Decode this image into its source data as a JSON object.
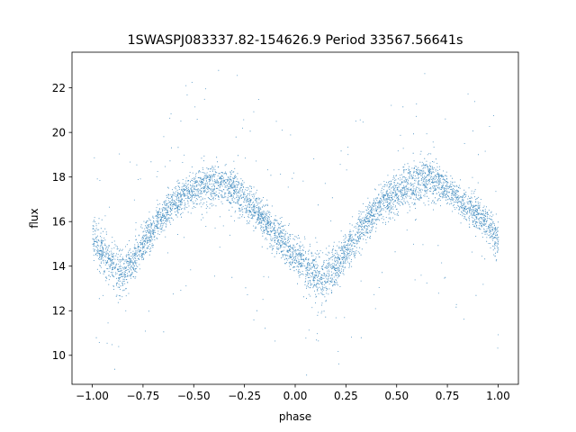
{
  "chart_data": {
    "type": "scatter",
    "title": "1SWASPJ083337.82-154626.9 Period 33567.56641s",
    "xlabel": "phase",
    "ylabel": "flux",
    "xlim": [
      -1.1,
      1.1
    ],
    "ylim": [
      8.7,
      23.6
    ],
    "xticks": [
      -1.0,
      -0.75,
      -0.5,
      -0.25,
      0.0,
      0.25,
      0.5,
      0.75,
      1.0
    ],
    "xtick_labels": [
      "−1.00",
      "−0.75",
      "−0.50",
      "−0.25",
      "0.00",
      "0.25",
      "0.50",
      "0.75",
      "1.00"
    ],
    "yticks": [
      10,
      12,
      14,
      16,
      18,
      20,
      22
    ],
    "ytick_labels": [
      "10",
      "12",
      "14",
      "16",
      "18",
      "20",
      "22"
    ],
    "grid": false,
    "legend": "none",
    "marker_color": "#1f77b4",
    "series": [
      {
        "x": [
          -1.0,
          -0.95,
          -0.9,
          -0.85,
          -0.8,
          -0.75,
          -0.7,
          -0.65,
          -0.6,
          -0.55,
          -0.5,
          -0.45,
          -0.4,
          -0.35,
          -0.3,
          -0.25,
          -0.2,
          -0.15,
          -0.1,
          -0.05,
          0.0,
          0.05,
          0.1,
          0.15,
          0.2,
          0.25,
          0.3,
          0.35,
          0.4,
          0.45,
          0.5,
          0.55,
          0.6,
          0.65,
          0.7,
          0.75,
          0.8,
          0.85,
          0.9,
          0.95,
          1.0
        ],
        "y": [
          15.3,
          14.6,
          14.0,
          13.7,
          14.2,
          15.0,
          15.7,
          16.3,
          16.8,
          17.2,
          17.5,
          17.7,
          17.8,
          17.7,
          17.5,
          17.0,
          16.5,
          16.0,
          15.5,
          15.0,
          14.5,
          14.0,
          13.6,
          13.6,
          14.0,
          14.7,
          15.4,
          16.0,
          16.6,
          17.0,
          17.3,
          17.6,
          17.8,
          17.9,
          17.8,
          17.5,
          17.1,
          16.6,
          16.3,
          15.9,
          15.2
        ],
        "spread": [
          0.6,
          0.6,
          0.7,
          0.7,
          0.6,
          0.5,
          0.5,
          0.5,
          0.5,
          0.5,
          0.6,
          0.6,
          0.6,
          0.6,
          0.6,
          0.5,
          0.5,
          0.5,
          0.5,
          0.5,
          0.6,
          0.6,
          0.7,
          0.7,
          0.6,
          0.5,
          0.5,
          0.5,
          0.5,
          0.5,
          0.6,
          0.6,
          0.6,
          0.6,
          0.6,
          0.5,
          0.5,
          0.5,
          0.5,
          0.5,
          0.6
        ]
      }
    ]
  }
}
